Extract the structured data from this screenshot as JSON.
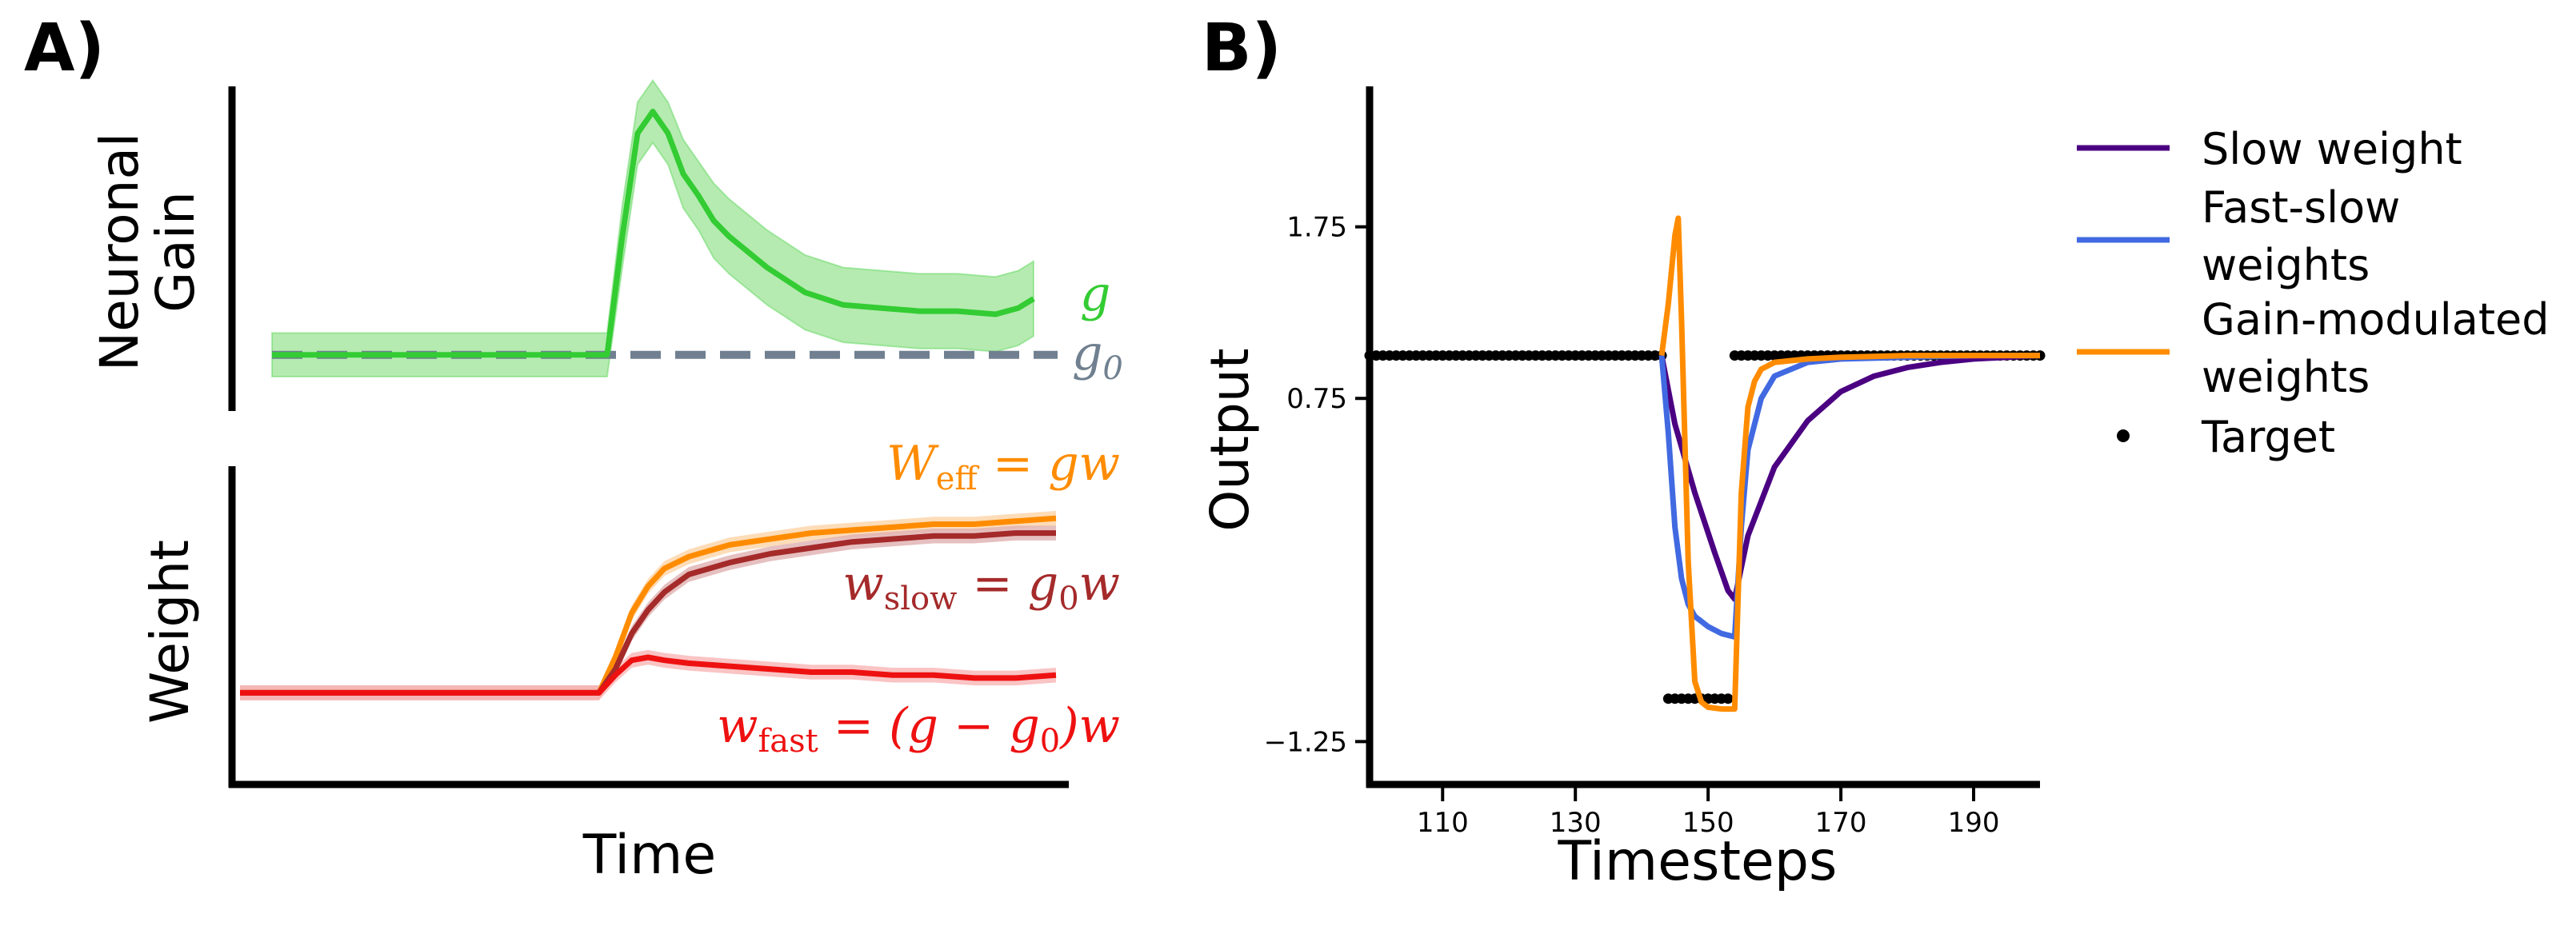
{
  "panel_a": {
    "label": "A)",
    "gain_ylabel_line1": "Neuronal",
    "gain_ylabel_line2": "Gain",
    "weight_ylabel": "Weight",
    "xlabel": "Time",
    "annotations": {
      "g": "g",
      "g0": "g",
      "g0_sub": "0",
      "w_eff_lhs": "W",
      "w_eff_sub": "eff",
      "w_eff_rhs": " = gw",
      "w_slow_lhs": "w",
      "w_slow_sub": "slow",
      "w_slow_mid": " = g",
      "w_slow_sub2": "0",
      "w_slow_rhs": "w",
      "w_fast_lhs": "w",
      "w_fast_sub": "fast",
      "w_fast_mid": " = (g − g",
      "w_fast_sub2": "0",
      "w_fast_rhs": ")w"
    },
    "colors": {
      "g": "#33cc33",
      "g_band": "#b5ebb0",
      "g0": "#708090",
      "w_eff": "#ff8c00",
      "w_slow": "#a52a2a",
      "w_fast": "#ee1111"
    }
  },
  "panel_b": {
    "label": "B)",
    "xlabel": "Timesteps",
    "ylabel": "Output",
    "legend": [
      {
        "line1": "Slow weight",
        "line2": "",
        "color": "#4b0082",
        "kind": "line"
      },
      {
        "line1": "Fast-slow",
        "line2": "weights",
        "color": "#4169e1",
        "kind": "line"
      },
      {
        "line1": "Gain-modulated",
        "line2": "weights",
        "color": "#ff8c00",
        "kind": "line"
      },
      {
        "line1": "Target",
        "line2": "",
        "color": "#000000",
        "kind": "dot"
      }
    ]
  },
  "chart_data": [
    {
      "type": "line",
      "title": "",
      "ylabel": "Neuronal Gain",
      "xlabel": "",
      "x_units": "relative time (0-100)",
      "xlim": [
        0,
        100
      ],
      "ylim": [
        0,
        1
      ],
      "series": [
        {
          "name": "g",
          "x": [
            0,
            10,
            20,
            30,
            40,
            44,
            46,
            48,
            50,
            52,
            54,
            56,
            58,
            60,
            65,
            70,
            75,
            80,
            85,
            90,
            95,
            98,
            100
          ],
          "values": [
            0.17,
            0.17,
            0.17,
            0.17,
            0.17,
            0.17,
            0.55,
            0.88,
            0.95,
            0.88,
            0.75,
            0.68,
            0.6,
            0.55,
            0.45,
            0.37,
            0.33,
            0.32,
            0.31,
            0.31,
            0.3,
            0.32,
            0.35
          ],
          "band_halfwidth": [
            0.07,
            0.07,
            0.07,
            0.07,
            0.07,
            0.07,
            0.1,
            0.1,
            0.1,
            0.1,
            0.11,
            0.11,
            0.12,
            0.12,
            0.12,
            0.12,
            0.12,
            0.12,
            0.12,
            0.12,
            0.12,
            0.12,
            0.12
          ]
        },
        {
          "name": "g0",
          "x": [
            0,
            100
          ],
          "values": [
            0.17,
            0.17
          ],
          "style": "dashed"
        }
      ]
    },
    {
      "type": "line",
      "title": "",
      "ylabel": "Weight",
      "xlabel": "Time",
      "x_units": "relative time (0-100)",
      "xlim": [
        0,
        100
      ],
      "ylim": [
        0,
        1
      ],
      "series": [
        {
          "name": "W_eff = gw",
          "x": [
            0,
            20,
            40,
            44,
            46,
            48,
            50,
            52,
            55,
            60,
            65,
            70,
            75,
            80,
            85,
            90,
            95,
            100
          ],
          "values": [
            0.28,
            0.28,
            0.28,
            0.28,
            0.4,
            0.55,
            0.64,
            0.7,
            0.74,
            0.78,
            0.8,
            0.82,
            0.83,
            0.84,
            0.85,
            0.85,
            0.86,
            0.87
          ]
        },
        {
          "name": "w_slow = g0w",
          "x": [
            0,
            20,
            40,
            44,
            46,
            48,
            50,
            52,
            55,
            60,
            65,
            70,
            75,
            80,
            85,
            90,
            95,
            100
          ],
          "values": [
            0.28,
            0.28,
            0.28,
            0.28,
            0.36,
            0.48,
            0.56,
            0.62,
            0.68,
            0.72,
            0.75,
            0.77,
            0.79,
            0.8,
            0.81,
            0.81,
            0.82,
            0.82
          ]
        },
        {
          "name": "w_fast = (g - g0)w",
          "x": [
            0,
            20,
            40,
            44,
            46,
            48,
            50,
            52,
            55,
            60,
            65,
            70,
            75,
            80,
            85,
            90,
            95,
            100
          ],
          "values": [
            0.28,
            0.28,
            0.28,
            0.28,
            0.34,
            0.39,
            0.4,
            0.39,
            0.38,
            0.37,
            0.36,
            0.35,
            0.35,
            0.34,
            0.34,
            0.33,
            0.33,
            0.34
          ]
        }
      ]
    },
    {
      "type": "line",
      "title": "",
      "xlabel": "Timesteps",
      "ylabel": "Output",
      "xlim": [
        99,
        200
      ],
      "ylim": [
        -1.5,
        2.55
      ],
      "xticks": [
        110,
        130,
        150,
        170,
        190
      ],
      "yticks": [
        -1.25,
        0.75,
        1.75
      ],
      "ytick_labels": [
        "−1.25",
        "0.75",
        "1.75"
      ],
      "series": [
        {
          "name": "Slow weight",
          "x": [
            143,
            145,
            148,
            151,
            153,
            154,
            156,
            160,
            165,
            170,
            175,
            180,
            185,
            190,
            195,
            200
          ],
          "values": [
            1.0,
            0.6,
            0.2,
            -0.15,
            -0.37,
            -0.42,
            -0.05,
            0.35,
            0.62,
            0.79,
            0.88,
            0.93,
            0.96,
            0.98,
            0.99,
            1.0
          ]
        },
        {
          "name": "Fast-slow weights",
          "x": [
            143,
            144,
            145,
            146,
            147,
            148,
            150,
            152,
            153,
            154,
            155,
            156,
            158,
            160,
            165,
            170,
            180,
            190,
            200
          ],
          "values": [
            1.0,
            0.55,
            0.0,
            -0.3,
            -0.45,
            -0.52,
            -0.58,
            -0.62,
            -0.63,
            -0.64,
            0.0,
            0.45,
            0.75,
            0.88,
            0.96,
            0.98,
            0.99,
            1.0,
            1.0
          ]
        },
        {
          "name": "Gain-modulated weights",
          "x": [
            143,
            144,
            145,
            145.5,
            146,
            147,
            148,
            149,
            150,
            152,
            153,
            154,
            155,
            156,
            157,
            158,
            160,
            165,
            170,
            180,
            200
          ],
          "values": [
            1.0,
            1.3,
            1.7,
            1.8,
            1.2,
            -0.2,
            -0.9,
            -1.02,
            -1.05,
            -1.06,
            -1.06,
            -1.06,
            0.2,
            0.7,
            0.85,
            0.92,
            0.96,
            0.98,
            0.99,
            1.0,
            1.0
          ]
        },
        {
          "name": "Target",
          "kind": "scatter",
          "segments": [
            {
              "x_start": 99,
              "x_end": 143,
              "value": 1.0
            },
            {
              "x_start": 144,
              "x_end": 153,
              "value": -1.0
            },
            {
              "x_start": 154,
              "x_end": 200,
              "value": 1.0
            }
          ]
        }
      ]
    }
  ]
}
